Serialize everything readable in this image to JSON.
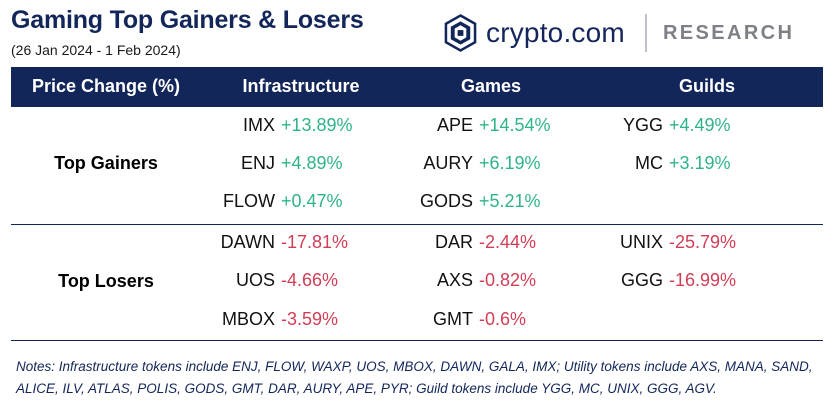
{
  "header": {
    "title": "Gaming Top Gainers & Losers",
    "date_range": "(26 Jan 2024 - 1 Feb 2024)",
    "logo_brand": "crypto.com",
    "logo_section": "RESEARCH"
  },
  "table": {
    "columns": [
      "Price Change (%)",
      "Infrastructure",
      "Games",
      "Guilds"
    ],
    "gainers_label": "Top Gainers",
    "losers_label": "Top Losers",
    "gainers": {
      "infrastructure": [
        {
          "token": "IMX",
          "change": "+13.89%"
        },
        {
          "token": "ENJ",
          "change": "+4.89%"
        },
        {
          "token": "FLOW",
          "change": "+0.47%"
        }
      ],
      "games": [
        {
          "token": "APE",
          "change": "+14.54%"
        },
        {
          "token": "AURY",
          "change": "+6.19%"
        },
        {
          "token": "GODS",
          "change": "+5.21%"
        }
      ],
      "guilds": [
        {
          "token": "YGG",
          "change": "+4.49%"
        },
        {
          "token": "MC",
          "change": "+3.19%"
        }
      ]
    },
    "losers": {
      "infrastructure": [
        {
          "token": "DAWN",
          "change": "-17.81%"
        },
        {
          "token": "UOS",
          "change": "-4.66%"
        },
        {
          "token": "MBOX",
          "change": "-3.59%"
        }
      ],
      "games": [
        {
          "token": "DAR",
          "change": "-2.44%"
        },
        {
          "token": "AXS",
          "change": "-0.82%"
        },
        {
          "token": "GMT",
          "change": "-0.6%"
        }
      ],
      "guilds": [
        {
          "token": "UNIX",
          "change": "-25.79%"
        },
        {
          "token": "GGG",
          "change": "-16.99%"
        }
      ]
    }
  },
  "notes": "Notes: Infrastructure tokens include ENJ, FLOW, WAXP, UOS, MBOX, DAWN, GALA, IMX; Utility tokens include AXS, MANA, SAND, ALICE, ILV, ATLAS, POLIS, GODS, GMT, DAR, AURY, APE, PYR; Guild tokens include YGG, MC, UNIX, GGG, AGV.",
  "colors": {
    "navy": "#13265a",
    "gain": "#2fb38b",
    "loss": "#d23d56"
  },
  "icons": {
    "logo": "crypto-com-shield-icon"
  }
}
